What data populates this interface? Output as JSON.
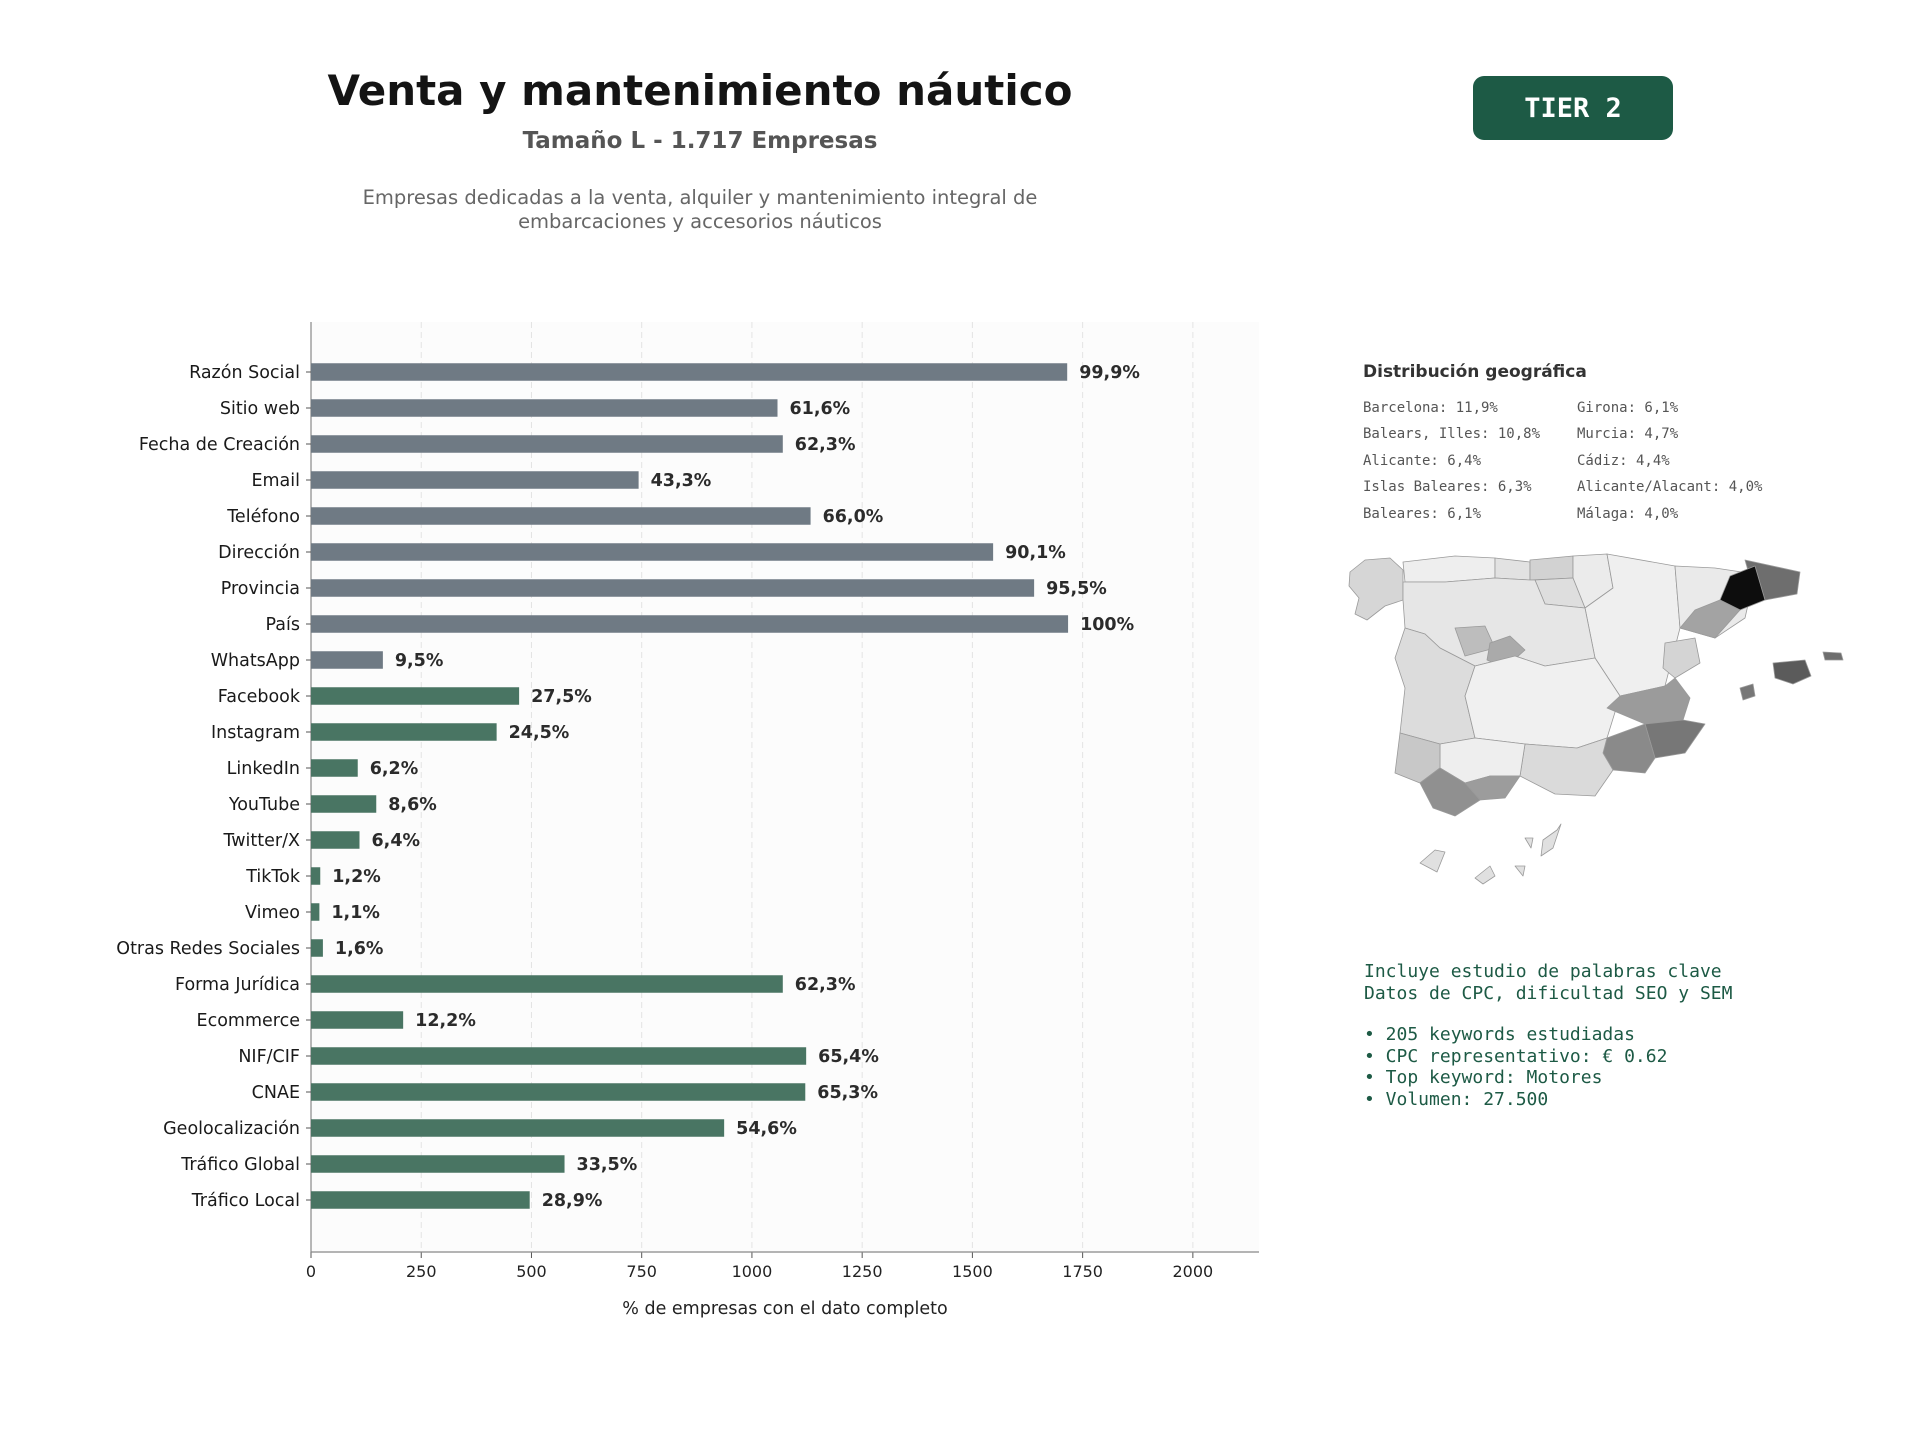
{
  "header": {
    "title": "Venta y mantenimiento náutico",
    "subtitle": "Tamaño L - 1.717 Empresas",
    "description_lines": [
      "Empresas dedicadas a la venta, alquiler y mantenimiento integral de",
      "embarcaciones y accesorios náuticos"
    ],
    "tier_badge": "TIER 2"
  },
  "colors": {
    "contact_bar": "#6f7a84",
    "digital_bar": "#497563",
    "accent": "#1d5a45"
  },
  "chart_data": {
    "type": "bar",
    "orientation": "horizontal",
    "xlabel": "% de empresas con el dato completo",
    "xlim": [
      0,
      2150
    ],
    "xticks": [
      0,
      250,
      500,
      750,
      1000,
      1250,
      1500,
      1750,
      2000
    ],
    "grid": "vertical dashed",
    "categories": [
      "Razón Social",
      "Sitio web",
      "Fecha de Creación",
      "Email",
      "Teléfono",
      "Dirección",
      "Provincia",
      "País",
      "WhatsApp",
      "Facebook",
      "Instagram",
      "LinkedIn",
      "YouTube",
      "Twitter/X",
      "TikTok",
      "Vimeo",
      "Otras Redes Sociales",
      "Forma Jurídica",
      "Ecommerce",
      "NIF/CIF",
      "CNAE",
      "Geolocalización",
      "Tráfico Global",
      "Tráfico Local"
    ],
    "values": [
      1715,
      1058,
      1070,
      743,
      1133,
      1547,
      1640,
      1717,
      163,
      472,
      421,
      106,
      148,
      110,
      21,
      19,
      27,
      1070,
      209,
      1123,
      1121,
      937,
      575,
      496
    ],
    "labels": [
      "99,9%",
      "61,6%",
      "62,3%",
      "43,3%",
      "66,0%",
      "90,1%",
      "95,5%",
      "100%",
      "9,5%",
      "27,5%",
      "24,5%",
      "6,2%",
      "8,6%",
      "6,4%",
      "1,2%",
      "1,1%",
      "1,6%",
      "62,3%",
      "12,2%",
      "65,4%",
      "65,3%",
      "54,6%",
      "33,5%",
      "28,9%"
    ],
    "groups": [
      "contact",
      "contact",
      "contact",
      "contact",
      "contact",
      "contact",
      "contact",
      "contact",
      "contact",
      "digital",
      "digital",
      "digital",
      "digital",
      "digital",
      "digital",
      "digital",
      "digital",
      "digital",
      "digital",
      "digital",
      "digital",
      "digital",
      "digital",
      "digital"
    ]
  },
  "geo": {
    "title": "Distribución geográfica",
    "left_column": [
      "Barcelona: 11,9%",
      "Balears, Illes: 10,8%",
      "Alicante: 6,4%",
      "Islas Baleares: 6,3%",
      "Baleares: 6,1%"
    ],
    "right_column": [
      "Girona: 6,1%",
      "Murcia: 4,7%",
      "Cádiz: 4,4%",
      "Alicante/Alacant: 4,0%",
      "Málaga: 4,0%"
    ]
  },
  "keywords": {
    "intro_lines": [
      "Incluye estudio de palabras clave",
      "Datos de CPC, dificultad SEO y SEM"
    ],
    "bullets": [
      "• 205 keywords estudiadas",
      "• CPC representativo: € 0.62",
      "• Top keyword: Motores",
      "• Volumen: 27.500"
    ]
  }
}
